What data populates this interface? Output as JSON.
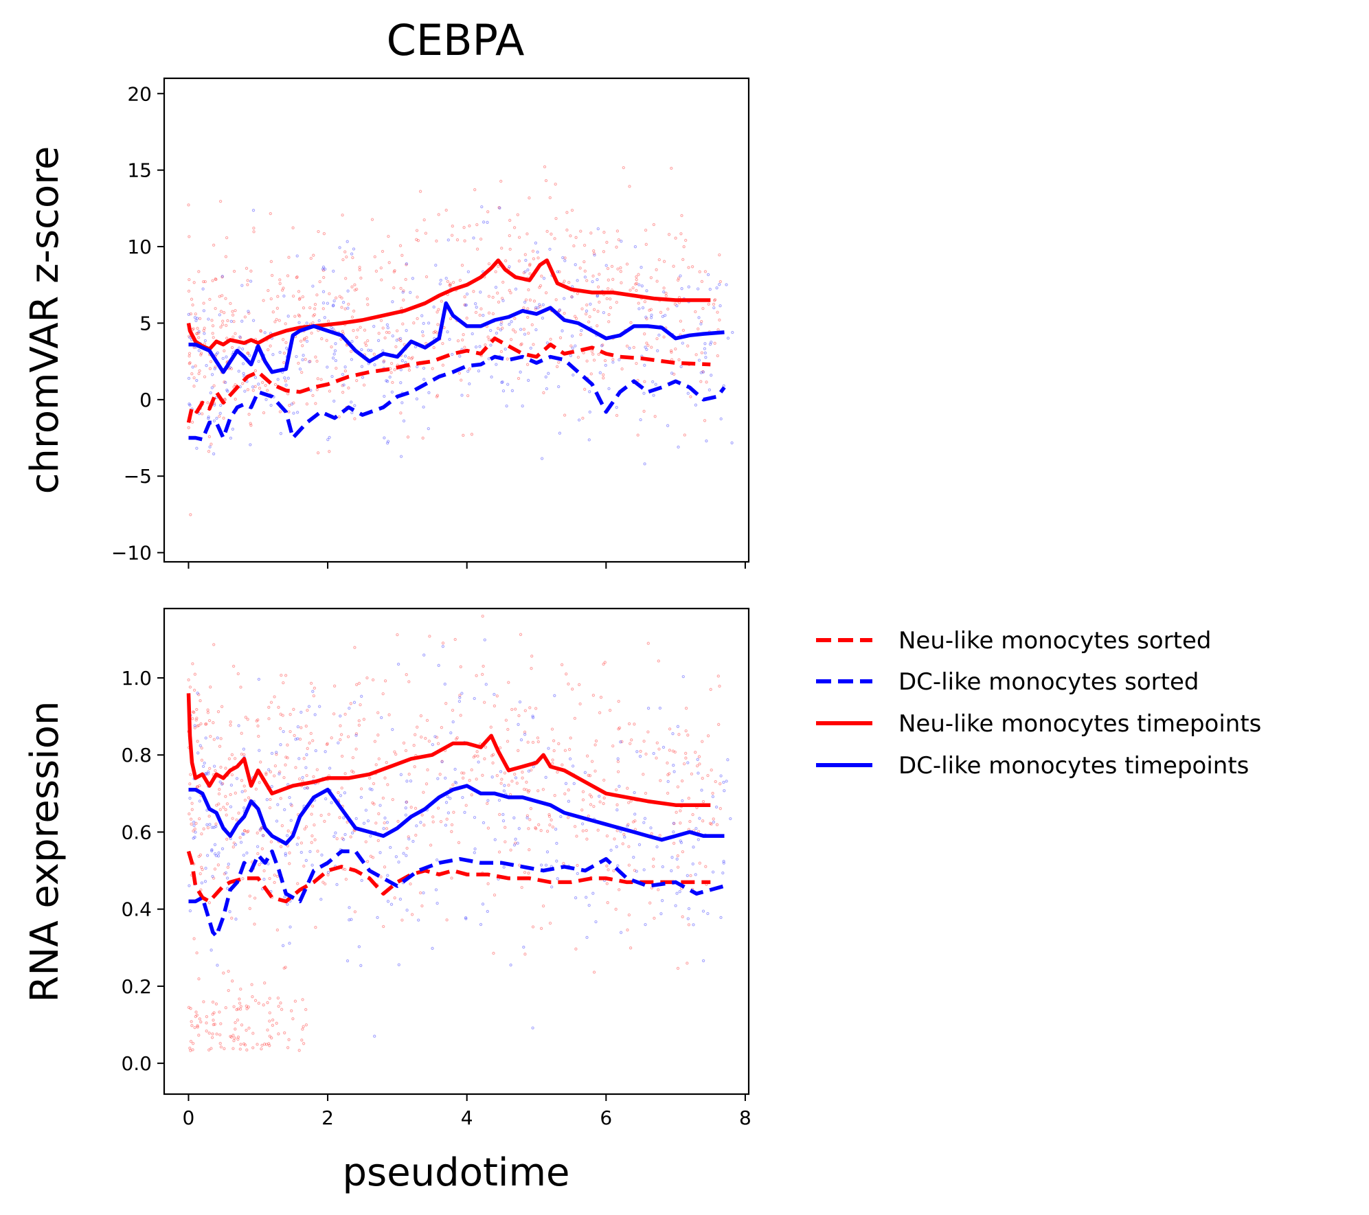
{
  "title": "CEBPA",
  "legend_labels": [
    "Neu-like monocytes sorted",
    "DC-like monocytes sorted",
    "Neu-like monocytes timepoints",
    "DC-like monocytes timepoints"
  ],
  "colors": {
    "neu": "#ff0000",
    "dc": "#0000ff"
  },
  "chart_data": [
    {
      "type": "line",
      "title": "CEBPA",
      "xlabel": "",
      "ylabel": "chromVAR z-score",
      "xlim": [
        -0.35,
        8.05
      ],
      "ylim": [
        -10.6,
        21.0
      ],
      "x_ticks": [
        0,
        2,
        4,
        6,
        8
      ],
      "y_ticks": [
        -10,
        -5,
        0,
        5,
        10,
        15,
        20
      ],
      "y_tick_labels": [
        "−10",
        "−5",
        "0",
        "5",
        "10",
        "15",
        "20"
      ],
      "grid": false,
      "series": [
        {
          "name": "Neu-like monocytes sorted",
          "color": "#ff0000",
          "style": "dashed",
          "x": [
            0,
            0.05,
            0.12,
            0.2,
            0.3,
            0.4,
            0.5,
            0.6,
            0.7,
            0.85,
            1.0,
            1.2,
            1.4,
            1.6,
            1.8,
            2.0,
            2.3,
            2.6,
            2.9,
            3.2,
            3.5,
            3.8,
            4.0,
            4.2,
            4.4,
            4.6,
            4.8,
            5.0,
            5.2,
            5.4,
            5.6,
            5.8,
            6.0,
            6.2,
            6.5,
            7.0,
            7.5
          ],
          "y": [
            -1.5,
            -0.5,
            -0.8,
            -0.2,
            -0.6,
            0.5,
            -0.2,
            0.3,
            0.8,
            1.5,
            1.8,
            1.0,
            0.6,
            0.5,
            0.8,
            1.0,
            1.5,
            1.8,
            2.0,
            2.3,
            2.5,
            3.0,
            3.2,
            3.0,
            4.0,
            3.5,
            3.0,
            2.8,
            3.6,
            3.0,
            3.2,
            3.4,
            3.0,
            2.8,
            2.7,
            2.4,
            2.3
          ]
        },
        {
          "name": "DC-like monocytes sorted",
          "color": "#0000ff",
          "style": "dashed",
          "x": [
            0,
            0.1,
            0.2,
            0.3,
            0.4,
            0.5,
            0.6,
            0.7,
            0.8,
            0.9,
            1.0,
            1.2,
            1.4,
            1.5,
            1.7,
            1.9,
            2.1,
            2.3,
            2.5,
            2.8,
            3.0,
            3.2,
            3.4,
            3.6,
            3.8,
            4.0,
            4.2,
            4.4,
            4.6,
            4.8,
            5.0,
            5.2,
            5.4,
            5.6,
            5.8,
            6.0,
            6.2,
            6.4,
            6.6,
            6.8,
            7.0,
            7.2,
            7.4,
            7.6,
            7.7
          ],
          "y": [
            -2.5,
            -2.5,
            -2.6,
            -1.5,
            -1.5,
            -2.5,
            -1.2,
            -0.5,
            -0.3,
            -0.5,
            0.5,
            0.2,
            -0.8,
            -2.5,
            -1.5,
            -0.8,
            -1.2,
            -0.5,
            -1.0,
            -0.5,
            0.2,
            0.5,
            1.0,
            1.5,
            1.8,
            2.2,
            2.3,
            2.8,
            2.6,
            2.8,
            2.4,
            2.8,
            2.6,
            1.8,
            1.0,
            -0.8,
            0.5,
            1.2,
            0.5,
            0.8,
            1.2,
            0.8,
            0.0,
            0.2,
            0.8
          ]
        },
        {
          "name": "Neu-like monocytes timepoints",
          "color": "#ff0000",
          "style": "solid",
          "x": [
            0,
            0.02,
            0.1,
            0.2,
            0.3,
            0.4,
            0.5,
            0.6,
            0.7,
            0.8,
            0.9,
            1.0,
            1.2,
            1.4,
            1.6,
            1.8,
            2.0,
            2.2,
            2.5,
            2.8,
            3.1,
            3.4,
            3.6,
            3.8,
            4.0,
            4.2,
            4.35,
            4.45,
            4.55,
            4.7,
            4.9,
            5.05,
            5.15,
            5.3,
            5.5,
            5.8,
            6.1,
            6.4,
            6.7,
            7.0,
            7.5
          ],
          "y": [
            5.0,
            4.5,
            3.8,
            3.5,
            3.3,
            3.8,
            3.6,
            3.9,
            3.8,
            3.7,
            3.9,
            3.7,
            4.2,
            4.5,
            4.7,
            4.8,
            4.9,
            5.0,
            5.2,
            5.5,
            5.8,
            6.3,
            6.8,
            7.2,
            7.5,
            8.0,
            8.6,
            9.1,
            8.5,
            8.0,
            7.8,
            8.8,
            9.1,
            7.6,
            7.2,
            7.0,
            7.0,
            6.8,
            6.6,
            6.5,
            6.5
          ]
        },
        {
          "name": "DC-like monocytes timepoints",
          "color": "#0000ff",
          "style": "solid",
          "x": [
            0,
            0.1,
            0.2,
            0.3,
            0.4,
            0.5,
            0.6,
            0.7,
            0.8,
            0.9,
            1.0,
            1.1,
            1.2,
            1.4,
            1.5,
            1.6,
            1.8,
            2.0,
            2.2,
            2.4,
            2.6,
            2.8,
            3.0,
            3.2,
            3.4,
            3.6,
            3.7,
            3.8,
            4.0,
            4.2,
            4.4,
            4.6,
            4.8,
            5.0,
            5.2,
            5.4,
            5.6,
            5.8,
            6.0,
            6.2,
            6.4,
            6.6,
            6.8,
            7.0,
            7.2,
            7.4,
            7.7
          ],
          "y": [
            3.6,
            3.6,
            3.4,
            3.2,
            2.5,
            1.8,
            2.5,
            3.2,
            2.8,
            2.3,
            3.5,
            2.5,
            1.8,
            2.0,
            4.2,
            4.5,
            4.8,
            4.5,
            4.2,
            3.2,
            2.5,
            3.0,
            2.8,
            3.8,
            3.4,
            4.0,
            6.3,
            5.5,
            4.8,
            4.8,
            5.2,
            5.4,
            5.8,
            5.6,
            6.0,
            5.2,
            5.0,
            4.5,
            4.0,
            4.2,
            4.8,
            4.8,
            4.7,
            4.0,
            4.2,
            4.3,
            4.4
          ]
        }
      ]
    },
    {
      "type": "line",
      "title": "",
      "xlabel": "pseudotime",
      "ylabel": "RNA expression",
      "xlim": [
        -0.35,
        8.05
      ],
      "ylim": [
        -0.08,
        1.18
      ],
      "x_ticks": [
        0,
        2,
        4,
        6,
        8
      ],
      "y_ticks": [
        0.0,
        0.2,
        0.4,
        0.6,
        0.8,
        1.0
      ],
      "y_tick_labels": [
        "0.0",
        "0.2",
        "0.4",
        "0.6",
        "0.8",
        "1.0"
      ],
      "grid": false,
      "legend": "right",
      "series": [
        {
          "name": "Neu-like monocytes sorted",
          "color": "#ff0000",
          "style": "dashed",
          "x": [
            0,
            0.05,
            0.1,
            0.2,
            0.3,
            0.4,
            0.5,
            0.6,
            0.8,
            1.0,
            1.2,
            1.4,
            1.6,
            1.8,
            2.0,
            2.2,
            2.4,
            2.6,
            2.8,
            3.0,
            3.2,
            3.4,
            3.6,
            3.8,
            4.0,
            4.3,
            4.6,
            4.9,
            5.2,
            5.5,
            5.8,
            6.0,
            6.3,
            6.6,
            7.0,
            7.5
          ],
          "y": [
            0.55,
            0.52,
            0.46,
            0.43,
            0.42,
            0.44,
            0.46,
            0.47,
            0.48,
            0.48,
            0.43,
            0.42,
            0.45,
            0.47,
            0.5,
            0.51,
            0.5,
            0.48,
            0.44,
            0.47,
            0.49,
            0.5,
            0.49,
            0.5,
            0.49,
            0.49,
            0.48,
            0.48,
            0.47,
            0.47,
            0.48,
            0.48,
            0.47,
            0.47,
            0.47,
            0.47
          ]
        },
        {
          "name": "DC-like monocytes sorted",
          "color": "#0000ff",
          "style": "dashed",
          "x": [
            0,
            0.1,
            0.2,
            0.3,
            0.35,
            0.4,
            0.5,
            0.6,
            0.7,
            0.8,
            0.9,
            1.0,
            1.1,
            1.2,
            1.3,
            1.4,
            1.6,
            1.8,
            2.0,
            2.2,
            2.4,
            2.6,
            2.8,
            3.0,
            3.3,
            3.6,
            3.9,
            4.2,
            4.5,
            4.8,
            5.1,
            5.4,
            5.7,
            6.0,
            6.3,
            6.6,
            7.0,
            7.3,
            7.5,
            7.7
          ],
          "y": [
            0.42,
            0.42,
            0.43,
            0.37,
            0.34,
            0.33,
            0.38,
            0.45,
            0.47,
            0.52,
            0.5,
            0.54,
            0.52,
            0.55,
            0.5,
            0.44,
            0.42,
            0.5,
            0.52,
            0.55,
            0.55,
            0.5,
            0.48,
            0.46,
            0.5,
            0.52,
            0.53,
            0.52,
            0.52,
            0.51,
            0.5,
            0.51,
            0.5,
            0.53,
            0.48,
            0.46,
            0.47,
            0.44,
            0.45,
            0.46
          ]
        },
        {
          "name": "Neu-like monocytes timepoints",
          "color": "#ff0000",
          "style": "solid",
          "x": [
            0,
            0.02,
            0.05,
            0.1,
            0.2,
            0.3,
            0.4,
            0.5,
            0.6,
            0.7,
            0.8,
            0.9,
            1.0,
            1.2,
            1.5,
            1.8,
            2.0,
            2.3,
            2.6,
            2.9,
            3.2,
            3.5,
            3.8,
            4.0,
            4.2,
            4.35,
            4.45,
            4.6,
            4.8,
            5.0,
            5.1,
            5.2,
            5.4,
            5.7,
            6.0,
            6.3,
            6.6,
            7.0,
            7.5
          ],
          "y": [
            0.96,
            0.85,
            0.78,
            0.74,
            0.75,
            0.72,
            0.75,
            0.74,
            0.76,
            0.77,
            0.79,
            0.72,
            0.76,
            0.7,
            0.72,
            0.73,
            0.74,
            0.74,
            0.75,
            0.77,
            0.79,
            0.8,
            0.83,
            0.83,
            0.82,
            0.85,
            0.81,
            0.76,
            0.77,
            0.78,
            0.8,
            0.77,
            0.76,
            0.73,
            0.7,
            0.69,
            0.68,
            0.67,
            0.67
          ]
        },
        {
          "name": "DC-like monocytes timepoints",
          "color": "#0000ff",
          "style": "solid",
          "x": [
            0,
            0.1,
            0.2,
            0.3,
            0.4,
            0.5,
            0.6,
            0.7,
            0.8,
            0.9,
            1.0,
            1.1,
            1.2,
            1.3,
            1.4,
            1.5,
            1.6,
            1.8,
            2.0,
            2.2,
            2.4,
            2.6,
            2.8,
            3.0,
            3.2,
            3.4,
            3.6,
            3.8,
            4.0,
            4.2,
            4.4,
            4.6,
            4.8,
            5.0,
            5.2,
            5.4,
            5.6,
            5.8,
            6.0,
            6.2,
            6.4,
            6.6,
            6.8,
            7.0,
            7.2,
            7.4,
            7.7
          ],
          "y": [
            0.71,
            0.71,
            0.7,
            0.66,
            0.65,
            0.61,
            0.59,
            0.62,
            0.64,
            0.68,
            0.66,
            0.61,
            0.59,
            0.58,
            0.57,
            0.59,
            0.64,
            0.69,
            0.71,
            0.66,
            0.61,
            0.6,
            0.59,
            0.61,
            0.64,
            0.66,
            0.69,
            0.71,
            0.72,
            0.7,
            0.7,
            0.69,
            0.69,
            0.68,
            0.67,
            0.65,
            0.64,
            0.63,
            0.62,
            0.61,
            0.6,
            0.59,
            0.58,
            0.59,
            0.6,
            0.59,
            0.59
          ]
        }
      ]
    }
  ]
}
